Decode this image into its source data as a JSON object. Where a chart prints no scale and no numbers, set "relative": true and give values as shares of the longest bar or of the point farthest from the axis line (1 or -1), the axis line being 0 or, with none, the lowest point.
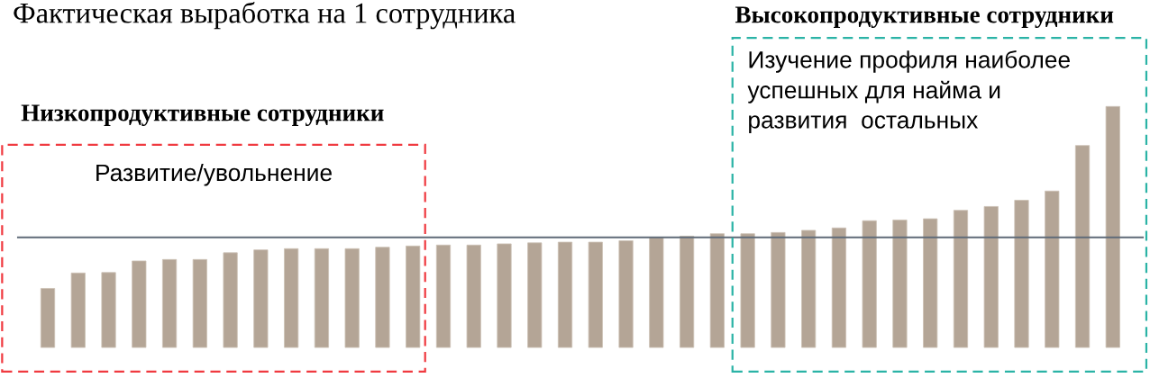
{
  "chart_data": {
    "type": "bar",
    "title": "Фактическая выработка на 1 сотрудника",
    "relative": true,
    "categories": [
      null,
      null,
      null,
      null,
      null,
      null,
      null,
      null,
      null,
      null,
      null,
      null,
      null,
      null,
      null,
      null,
      null,
      null,
      null,
      null,
      null,
      null,
      null,
      null,
      null,
      null,
      null,
      null,
      null,
      null,
      null,
      null,
      null,
      null,
      null,
      null
    ],
    "values": [
      0.245,
      0.309,
      0.311,
      0.359,
      0.365,
      0.365,
      0.393,
      0.405,
      0.41,
      0.41,
      0.41,
      0.416,
      0.421,
      0.425,
      0.425,
      0.43,
      0.434,
      0.437,
      0.437,
      0.443,
      0.457,
      0.462,
      0.472,
      0.472,
      0.477,
      0.486,
      0.496,
      0.526,
      0.529,
      0.534,
      0.569,
      0.585,
      0.611,
      0.649,
      0.838,
      1.0
    ],
    "color": "#b4a596",
    "ref_lines": [
      {
        "axis": "y",
        "value": 0.457,
        "color": "#5f6b78"
      }
    ],
    "annotations": [
      "Низкопродуктивные сотрудники",
      "Развитие/увольнение",
      "Высокопродуктивные сотрудники",
      "Изучение профиля наиболее\nуспешных для найма и\nразвития  остальных"
    ]
  }
}
